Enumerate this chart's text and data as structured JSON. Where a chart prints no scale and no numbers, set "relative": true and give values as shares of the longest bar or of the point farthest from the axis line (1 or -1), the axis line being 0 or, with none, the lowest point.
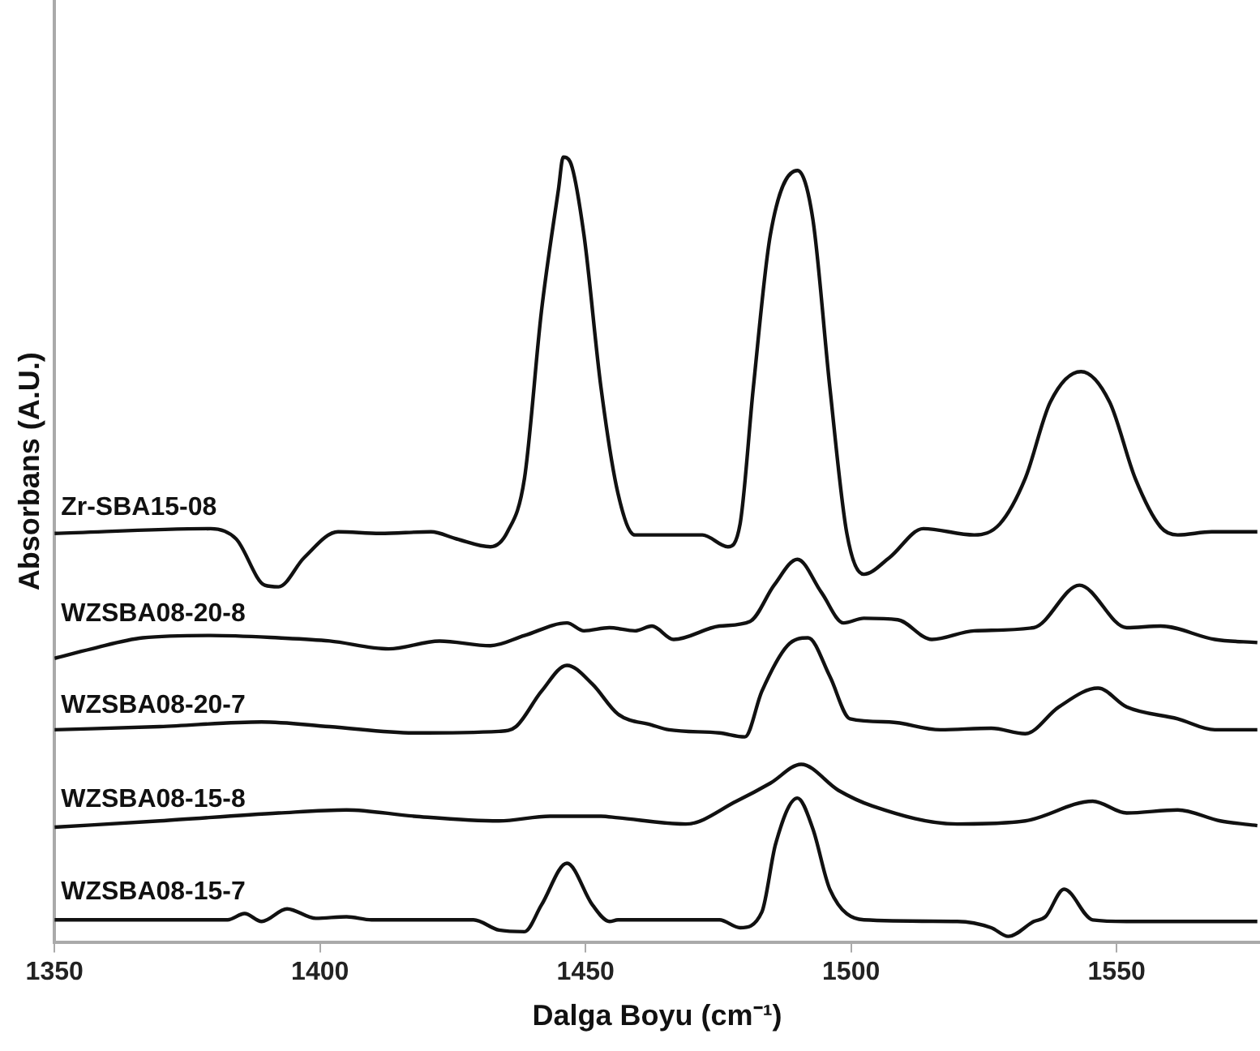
{
  "chart_data": {
    "type": "line",
    "xlabel": "Dalga Boyu (cm⁻¹)",
    "ylabel": "Absorbans (A.U.)",
    "relative": true,
    "xlim": [
      1350,
      1577
    ],
    "xticks": [
      1350,
      1400,
      1450,
      1500,
      1550
    ],
    "legend": false,
    "marker": "none",
    "grid": false,
    "series": [
      {
        "name": "Zr-SBA15-08",
        "color": "#111111",
        "x": [
          1350.0,
          1379.4,
          1384.2,
          1389.6,
          1392.2,
          1397.0,
          1403.4,
          1411.3,
          1420.9,
          1425.7,
          1432.1,
          1435.3,
          1438.5,
          1441.7,
          1444.9,
          1445.8,
          1447.1,
          1449.7,
          1452.9,
          1456.1,
          1459.3,
          1465.7,
          1472.0,
          1476.8,
          1479.1,
          1481.6,
          1484.8,
          1489.9,
          1492.8,
          1496.0,
          1499.2,
          1502.4,
          1507.2,
          1513.6,
          1523.2,
          1528.0,
          1532.8,
          1537.5,
          1543.3,
          1548.7,
          1553.5,
          1558.3,
          1561.5,
          1567.9,
          1576.5
        ],
        "values": [
          0.521,
          0.527,
          0.514,
          0.455,
          0.453,
          0.49,
          0.523,
          0.521,
          0.523,
          0.514,
          0.504,
          0.523,
          0.591,
          0.804,
          0.959,
          1.0,
          0.994,
          0.901,
          0.707,
          0.572,
          0.519,
          0.519,
          0.519,
          0.504,
          0.533,
          0.707,
          0.901,
          0.983,
          0.921,
          0.707,
          0.521,
          0.469,
          0.49,
          0.527,
          0.519,
          0.533,
          0.591,
          0.688,
          0.727,
          0.688,
          0.591,
          0.529,
          0.519,
          0.523,
          0.523
        ]
      },
      {
        "name": "WZSBA08-20-8",
        "color": "#111111",
        "x": [
          1350.0,
          1357.0,
          1366.6,
          1379.4,
          1392.2,
          1401.8,
          1412.9,
          1422.5,
          1432.1,
          1438.5,
          1446.5,
          1449.7,
          1454.5,
          1459.3,
          1462.5,
          1466.6,
          1475.2,
          1481.0,
          1485.5,
          1489.9,
          1494.4,
          1498.6,
          1502.4,
          1508.8,
          1515.2,
          1523.2,
          1534.4,
          1543.0,
          1551.9,
          1558.3,
          1568.5,
          1576.5
        ],
        "values": [
          0.362,
          0.374,
          0.388,
          0.391,
          0.388,
          0.384,
          0.374,
          0.384,
          0.378,
          0.391,
          0.407,
          0.397,
          0.401,
          0.397,
          0.403,
          0.386,
          0.403,
          0.409,
          0.455,
          0.488,
          0.446,
          0.407,
          0.413,
          0.411,
          0.386,
          0.397,
          0.401,
          0.455,
          0.401,
          0.403,
          0.386,
          0.382
        ]
      },
      {
        "name": "WZSBA08-20-7",
        "color": "#111111",
        "x": [
          1350.0,
          1369.8,
          1389.0,
          1401.8,
          1417.7,
          1433.7,
          1436.9,
          1441.7,
          1446.5,
          1451.3,
          1456.1,
          1462.5,
          1465.7,
          1475.2,
          1480.0,
          1483.2,
          1488.0,
          1491.9,
          1496.0,
          1499.8,
          1507.2,
          1516.8,
          1526.4,
          1532.8,
          1539.1,
          1546.5,
          1551.9,
          1561.5,
          1568.5,
          1576.5
        ],
        "values": [
          0.271,
          0.275,
          0.281,
          0.275,
          0.267,
          0.269,
          0.275,
          0.32,
          0.353,
          0.329,
          0.291,
          0.277,
          0.271,
          0.267,
          0.262,
          0.32,
          0.378,
          0.388,
          0.339,
          0.285,
          0.281,
          0.271,
          0.273,
          0.266,
          0.3,
          0.324,
          0.3,
          0.285,
          0.271,
          0.271
        ]
      },
      {
        "name": "WZSBA08-15-8",
        "color": "#111111",
        "x": [
          1350.0,
          1369.8,
          1392.2,
          1405.0,
          1417.7,
          1433.7,
          1443.3,
          1452.9,
          1456.1,
          1468.9,
          1478.4,
          1484.8,
          1490.6,
          1497.6,
          1504.0,
          1520.0,
          1532.8,
          1545.5,
          1551.9,
          1561.5,
          1569.5,
          1576.5
        ],
        "values": [
          0.147,
          0.155,
          0.165,
          0.169,
          0.161,
          0.155,
          0.161,
          0.161,
          0.159,
          0.151,
          0.18,
          0.203,
          0.227,
          0.194,
          0.174,
          0.151,
          0.155,
          0.18,
          0.165,
          0.169,
          0.155,
          0.149
        ]
      },
      {
        "name": "WZSBA08-15-7",
        "color": "#111111",
        "x": [
          1350.0,
          1382.6,
          1385.8,
          1389.0,
          1393.8,
          1399.2,
          1405.0,
          1409.7,
          1428.9,
          1433.7,
          1438.5,
          1441.7,
          1446.5,
          1451.3,
          1454.5,
          1456.1,
          1475.2,
          1479.1,
          1483.2,
          1485.8,
          1489.9,
          1492.8,
          1496.0,
          1502.4,
          1520.0,
          1526.4,
          1529.6,
          1534.4,
          1536.6,
          1540.1,
          1545.5,
          1551.9,
          1576.5
        ],
        "values": [
          0.029,
          0.029,
          0.037,
          0.027,
          0.043,
          0.031,
          0.033,
          0.029,
          0.029,
          0.016,
          0.014,
          0.048,
          0.101,
          0.048,
          0.027,
          0.029,
          0.029,
          0.019,
          0.039,
          0.126,
          0.184,
          0.145,
          0.068,
          0.029,
          0.027,
          0.019,
          0.008,
          0.027,
          0.033,
          0.068,
          0.029,
          0.027,
          0.027
        ]
      }
    ]
  }
}
